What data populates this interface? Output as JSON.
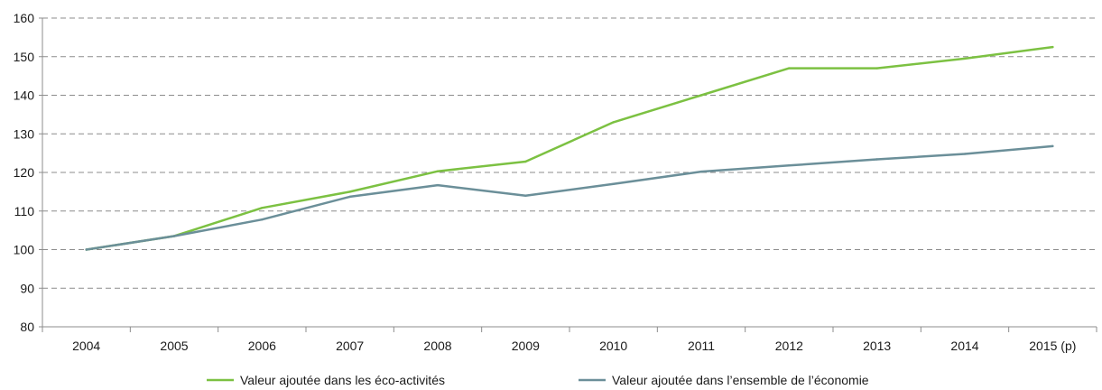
{
  "chart_data": {
    "type": "line",
    "title": "",
    "xlabel": "",
    "ylabel": "",
    "categories": [
      "2004",
      "2005",
      "2006",
      "2007",
      "2008",
      "2009",
      "2010",
      "2011",
      "2012",
      "2013",
      "2014",
      "2015 (p)"
    ],
    "ylim": [
      80,
      160
    ],
    "yticks": [
      80,
      90,
      100,
      110,
      120,
      130,
      140,
      150,
      160
    ],
    "grid": true,
    "legend_position": "bottom",
    "series": [
      {
        "name": "Valeur ajoutée dans les éco-activités",
        "color": "#7cc142",
        "values": [
          100,
          103.5,
          110.8,
          115,
          120.3,
          122.8,
          133,
          140,
          147,
          147,
          149.5,
          152.5
        ]
      },
      {
        "name": "Valeur ajoutée dans l’ensemble de l’économie",
        "color": "#6b8f99",
        "values": [
          100,
          103.5,
          107.8,
          113.7,
          116.7,
          114,
          117,
          120.2,
          121.8,
          123.4,
          124.8,
          126.8
        ]
      }
    ]
  }
}
